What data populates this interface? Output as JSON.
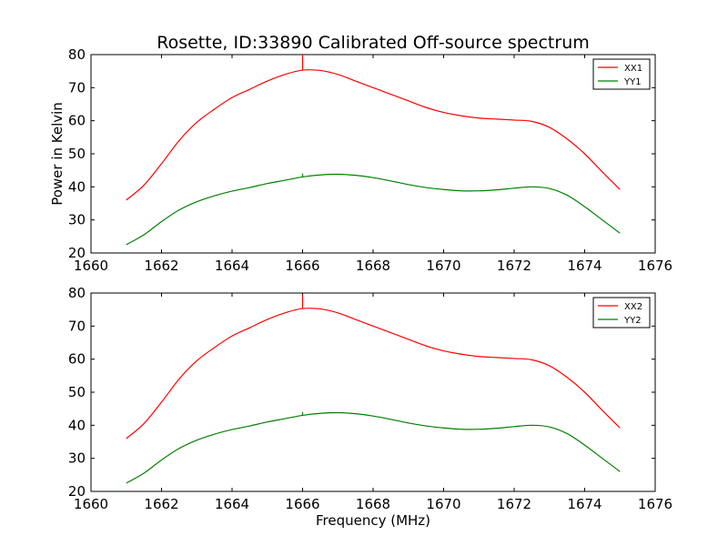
{
  "chart_data": {
    "title": "Rosette, ID:33890 Calibrated Off-source spectrum",
    "xlabel": "Frequency (MHz)",
    "ylabel": "Power in Kelvin",
    "xlim": [
      1660,
      1676
    ],
    "ylim": [
      20,
      80
    ],
    "legend_position": "top-right",
    "grid": false,
    "panels": [
      {
        "type": "line",
        "x_ticks": [
          "1660",
          "1662",
          "1664",
          "1666",
          "1668",
          "1670",
          "1672",
          "1674",
          "1676"
        ],
        "y_ticks": [
          "20",
          "30",
          "40",
          "50",
          "60",
          "70",
          "80"
        ],
        "series": [
          {
            "name": "XX1",
            "color": "#ff0000",
            "x": [
              1661.0,
              1661.5,
              1662.0,
              1662.5,
              1663.0,
              1663.5,
              1664.0,
              1664.5,
              1665.0,
              1665.5,
              1666.0,
              1666.5,
              1667.0,
              1667.5,
              1668.0,
              1668.5,
              1669.0,
              1669.5,
              1670.0,
              1670.5,
              1671.0,
              1671.5,
              1672.0,
              1672.5,
              1673.0,
              1673.5,
              1674.0,
              1674.5,
              1675.0
            ],
            "values": [
              36,
              40.5,
              47,
              54,
              59.5,
              63.5,
              67,
              69.5,
              72,
              74,
              75.3,
              75.2,
              74,
              72,
              70,
              68,
              66,
              64,
              62.5,
              61.5,
              60.8,
              60.5,
              60.2,
              59.8,
              58,
              54.5,
              50,
              44.5,
              39.2
            ],
            "spike": {
              "x": 1666.0,
              "peak": 80
            }
          },
          {
            "name": "YY1",
            "color": "#008000",
            "x": [
              1661.0,
              1661.5,
              1662.0,
              1662.5,
              1663.0,
              1663.5,
              1664.0,
              1664.5,
              1665.0,
              1665.5,
              1666.0,
              1666.5,
              1667.0,
              1667.5,
              1668.0,
              1668.5,
              1669.0,
              1669.5,
              1670.0,
              1670.5,
              1671.0,
              1671.5,
              1672.0,
              1672.5,
              1673.0,
              1673.5,
              1674.0,
              1674.5,
              1675.0
            ],
            "values": [
              22.5,
              25.5,
              29.5,
              33,
              35.5,
              37.3,
              38.7,
              39.8,
              41,
              42,
              43,
              43.6,
              43.8,
              43.5,
              42.8,
              41.8,
              40.7,
              39.8,
              39.2,
              38.8,
              38.8,
              39.1,
              39.6,
              40,
              39.5,
              37.5,
              34,
              30,
              26
            ],
            "spike": {
              "x": 1666.0,
              "peak": 44
            }
          }
        ]
      },
      {
        "type": "line",
        "x_ticks": [
          "1660",
          "1662",
          "1664",
          "1666",
          "1668",
          "1670",
          "1672",
          "1674",
          "1676"
        ],
        "y_ticks": [
          "20",
          "30",
          "40",
          "50",
          "60",
          "70",
          "80"
        ],
        "series": [
          {
            "name": "XX2",
            "color": "#ff0000",
            "x": [
              1661.0,
              1661.5,
              1662.0,
              1662.5,
              1663.0,
              1663.5,
              1664.0,
              1664.5,
              1665.0,
              1665.5,
              1666.0,
              1666.5,
              1667.0,
              1667.5,
              1668.0,
              1668.5,
              1669.0,
              1669.5,
              1670.0,
              1670.5,
              1671.0,
              1671.5,
              1672.0,
              1672.5,
              1673.0,
              1673.5,
              1674.0,
              1674.5,
              1675.0
            ],
            "values": [
              36,
              40.5,
              47,
              54,
              59.5,
              63.5,
              67,
              69.5,
              72,
              74,
              75.3,
              75.2,
              74,
              72,
              70,
              68,
              66,
              64,
              62.5,
              61.5,
              60.8,
              60.5,
              60.2,
              59.8,
              58,
              54.5,
              50,
              44.5,
              39.2
            ],
            "spike": {
              "x": 1666.0,
              "peak": 79.5
            }
          },
          {
            "name": "YY2",
            "color": "#008000",
            "x": [
              1661.0,
              1661.5,
              1662.0,
              1662.5,
              1663.0,
              1663.5,
              1664.0,
              1664.5,
              1665.0,
              1665.5,
              1666.0,
              1666.5,
              1667.0,
              1667.5,
              1668.0,
              1668.5,
              1669.0,
              1669.5,
              1670.0,
              1670.5,
              1671.0,
              1671.5,
              1672.0,
              1672.5,
              1673.0,
              1673.5,
              1674.0,
              1674.5,
              1675.0
            ],
            "values": [
              22.5,
              25.5,
              29.5,
              33,
              35.5,
              37.3,
              38.7,
              39.8,
              41,
              42,
              43,
              43.6,
              43.8,
              43.5,
              42.8,
              41.8,
              40.7,
              39.8,
              39.2,
              38.8,
              38.8,
              39.1,
              39.6,
              40,
              39.5,
              37.5,
              34,
              30,
              26
            ],
            "spike": {
              "x": 1666.0,
              "peak": 44
            }
          }
        ]
      }
    ]
  }
}
